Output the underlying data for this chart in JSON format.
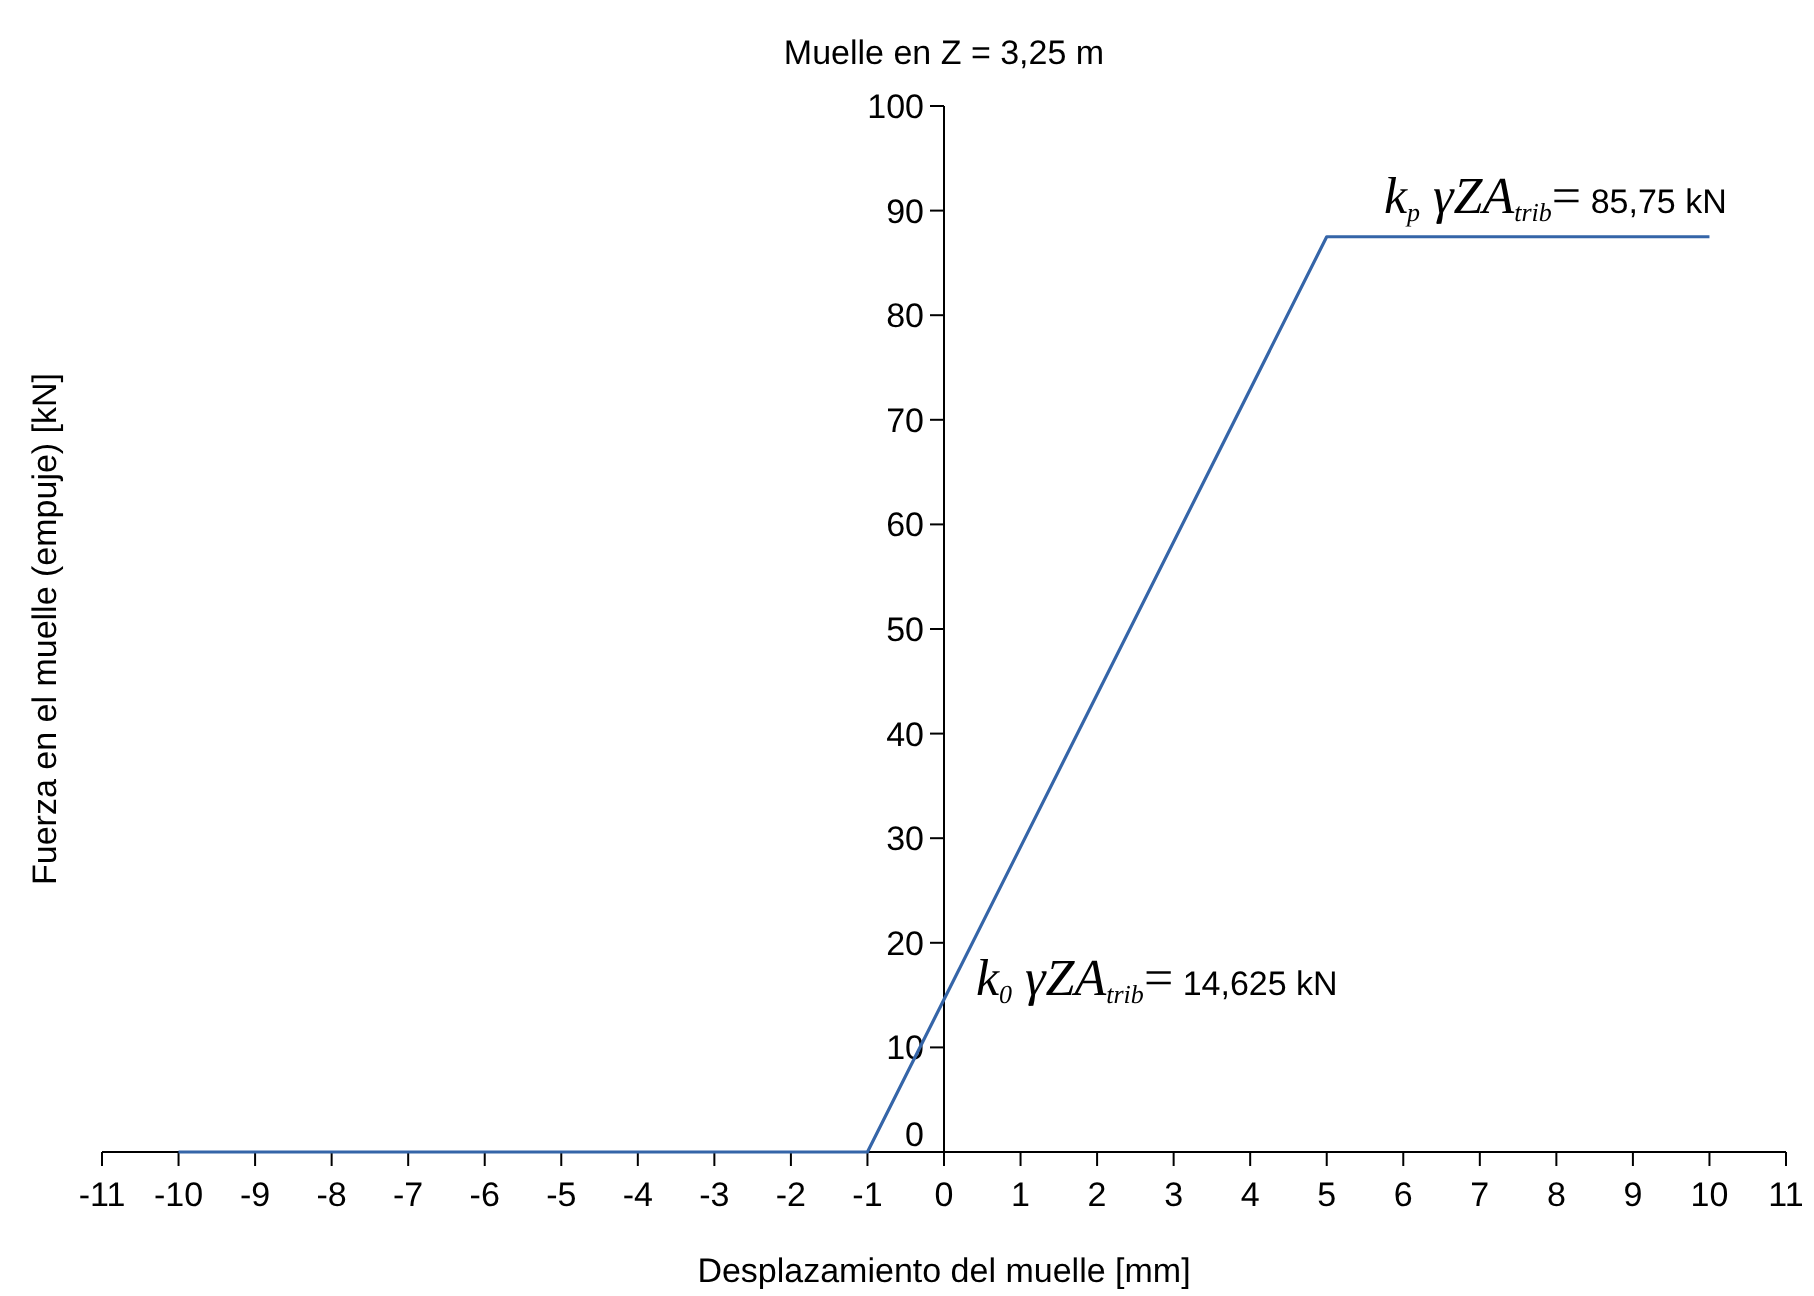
{
  "chart_data": {
    "type": "line",
    "title": "Muelle en Z = 3,25 m",
    "xlabel": "Desplazamiento del muelle [mm]",
    "ylabel": "Fuerza en el muelle (empuje) [kN]",
    "x": [
      -10,
      -1,
      5,
      10
    ],
    "series": [
      {
        "color": "#3565a8",
        "values": [
          0,
          0,
          87.5,
          87.5
        ]
      }
    ],
    "xlim": [
      -11,
      11
    ],
    "xticks": [
      -11,
      -10,
      -9,
      -8,
      -7,
      -6,
      -5,
      -4,
      -3,
      -2,
      -1,
      0,
      1,
      2,
      3,
      4,
      5,
      6,
      7,
      8,
      9,
      10,
      11
    ],
    "ylim": [
      0,
      100
    ],
    "yticks": [
      0,
      10,
      20,
      30,
      40,
      50,
      60,
      70,
      80,
      90,
      100
    ],
    "grid": false,
    "marker": "none",
    "line_style": "solid",
    "annotations": [
      {
        "text": "k$_{p}$ γZA$_{trib}$= 85,75 kN",
        "x": 5,
        "y": 87.5
      },
      {
        "text": "k$_{0}$ γZA$_{trib}$= 14,625 kN",
        "x": 0,
        "y": 14.625
      }
    ]
  }
}
